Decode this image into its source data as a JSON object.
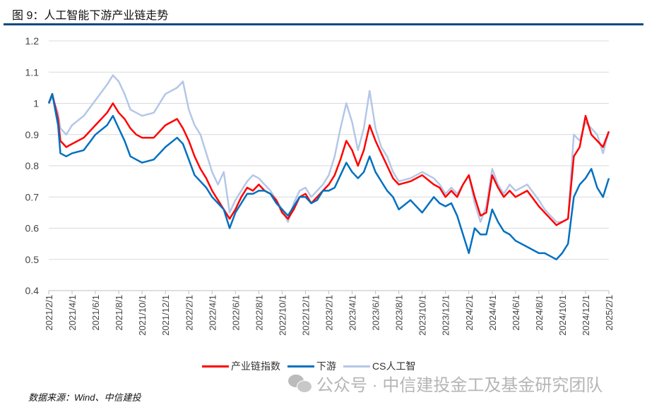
{
  "title": "图 9：人工智能下游产业链走势",
  "source": "数据来源：Wind、中信建投",
  "watermark": "公众号 · 中信建投金工及基金研究团队",
  "chart_data": {
    "type": "line",
    "title": "人工智能下游产业链走势",
    "xlabel": "",
    "ylabel": "",
    "x_unit": "months since 2021/2/1",
    "ylim": [
      0.4,
      1.2
    ],
    "yticks": [
      "0.4",
      "0.5",
      "0.6",
      "0.7",
      "0.8",
      "0.9",
      "1",
      "1.1",
      "1.2"
    ],
    "xticks": [
      "2021/2/1",
      "2021/4/1",
      "2021/6/1",
      "2021/8/1",
      "2021/10/1",
      "2021/12/1",
      "2022/2/1",
      "2022/4/1",
      "2022/6/1",
      "2022/8/1",
      "2022/10/1",
      "2022/12/1",
      "2023/2/1",
      "2023/4/1",
      "2023/6/1",
      "2023/8/1",
      "2023/10/1",
      "2023/12/1",
      "2024/2/1",
      "2024/4/1",
      "2024/6/1",
      "2024/8/1",
      "2024/10/1",
      "2024/12/1",
      "2025/2/1"
    ],
    "xlim": [
      0,
      48
    ],
    "grid": "horizontal",
    "legend_position": "bottom",
    "x": [
      0,
      0.3,
      0.8,
      1,
      1.5,
      2,
      3,
      4,
      5,
      5.5,
      6,
      6.5,
      7,
      7.5,
      8,
      9,
      10,
      11,
      11.5,
      12,
      12.5,
      13,
      13.5,
      14,
      14.5,
      15,
      15.5,
      16,
      16.5,
      17,
      17.5,
      18,
      18.5,
      19,
      19.5,
      20,
      20.5,
      21,
      21.5,
      22,
      22.5,
      23,
      23.5,
      24,
      24.5,
      25,
      25.5,
      26,
      26.5,
      27,
      27.5,
      28,
      28.5,
      29,
      29.5,
      30,
      31,
      32,
      33,
      33.5,
      34,
      34.5,
      35,
      35.5,
      36,
      36.5,
      37,
      37.5,
      38,
      38.5,
      39,
      39.5,
      40,
      41,
      42,
      42.5,
      43,
      43.5,
      44,
      44.5,
      45,
      45.5,
      46,
      46.5,
      47,
      47.5,
      48
    ],
    "series": [
      {
        "name": "CS人工智",
        "color": "#b4c7e7",
        "values": [
          1.0,
          1.02,
          0.97,
          0.92,
          0.9,
          0.93,
          0.96,
          1.01,
          1.06,
          1.09,
          1.07,
          1.03,
          0.98,
          0.97,
          0.96,
          0.97,
          1.03,
          1.05,
          1.07,
          0.98,
          0.93,
          0.9,
          0.84,
          0.78,
          0.74,
          0.78,
          0.65,
          0.69,
          0.72,
          0.75,
          0.77,
          0.76,
          0.74,
          0.72,
          0.69,
          0.66,
          0.62,
          0.68,
          0.72,
          0.73,
          0.7,
          0.72,
          0.74,
          0.77,
          0.83,
          0.92,
          1.0,
          0.94,
          0.85,
          0.92,
          1.04,
          0.92,
          0.86,
          0.83,
          0.78,
          0.75,
          0.76,
          0.78,
          0.76,
          0.74,
          0.71,
          0.73,
          0.71,
          0.74,
          0.77,
          0.68,
          0.62,
          0.67,
          0.79,
          0.74,
          0.71,
          0.74,
          0.72,
          0.74,
          0.69,
          0.66,
          0.64,
          0.62,
          0.62,
          0.63,
          0.9,
          0.88,
          0.94,
          0.92,
          0.9,
          0.84,
          0.91
        ]
      },
      {
        "name": "产业链指数",
        "color": "#ff0000",
        "values": [
          1.0,
          1.03,
          0.95,
          0.88,
          0.86,
          0.87,
          0.89,
          0.93,
          0.97,
          1.0,
          0.97,
          0.95,
          0.92,
          0.9,
          0.89,
          0.89,
          0.93,
          0.95,
          0.92,
          0.88,
          0.83,
          0.79,
          0.76,
          0.72,
          0.69,
          0.66,
          0.63,
          0.66,
          0.7,
          0.73,
          0.72,
          0.74,
          0.72,
          0.71,
          0.69,
          0.65,
          0.63,
          0.66,
          0.7,
          0.71,
          0.68,
          0.7,
          0.72,
          0.74,
          0.77,
          0.82,
          0.88,
          0.85,
          0.8,
          0.85,
          0.93,
          0.88,
          0.84,
          0.8,
          0.76,
          0.74,
          0.75,
          0.77,
          0.74,
          0.73,
          0.7,
          0.72,
          0.7,
          0.74,
          0.77,
          0.7,
          0.64,
          0.65,
          0.77,
          0.73,
          0.7,
          0.72,
          0.7,
          0.72,
          0.67,
          0.65,
          0.63,
          0.61,
          0.62,
          0.63,
          0.83,
          0.86,
          0.96,
          0.9,
          0.88,
          0.86,
          0.91
        ]
      },
      {
        "name": "下游",
        "color": "#0070c0",
        "values": [
          1.0,
          1.03,
          0.93,
          0.84,
          0.83,
          0.84,
          0.85,
          0.9,
          0.93,
          0.96,
          0.92,
          0.88,
          0.83,
          0.82,
          0.81,
          0.82,
          0.86,
          0.89,
          0.87,
          0.82,
          0.77,
          0.75,
          0.73,
          0.7,
          0.68,
          0.66,
          0.6,
          0.65,
          0.68,
          0.71,
          0.71,
          0.72,
          0.72,
          0.71,
          0.68,
          0.66,
          0.64,
          0.67,
          0.7,
          0.7,
          0.68,
          0.69,
          0.72,
          0.72,
          0.73,
          0.77,
          0.81,
          0.78,
          0.76,
          0.78,
          0.83,
          0.78,
          0.75,
          0.72,
          0.7,
          0.66,
          0.69,
          0.65,
          0.7,
          0.68,
          0.67,
          0.68,
          0.64,
          0.58,
          0.52,
          0.6,
          0.58,
          0.58,
          0.66,
          0.62,
          0.59,
          0.58,
          0.56,
          0.54,
          0.52,
          0.52,
          0.51,
          0.5,
          0.52,
          0.55,
          0.7,
          0.74,
          0.76,
          0.79,
          0.73,
          0.7,
          0.76
        ]
      }
    ],
    "legend": [
      "产业链指数",
      "下游",
      "CS人工智"
    ]
  }
}
